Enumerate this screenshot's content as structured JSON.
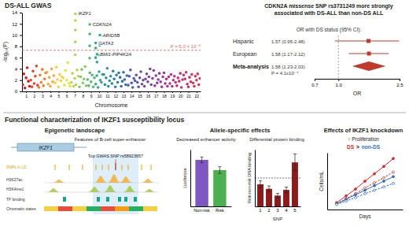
{
  "chart_data": [
    {
      "type": "scatter",
      "title": "DS-ALL GWAS",
      "x_label": "Chromosome",
      "y_label": "-log₁₀(P)",
      "xlim": [
        1,
        23
      ],
      "xticks": [
        {
          "value": 1.5,
          "label": "1"
        },
        {
          "value": 2.5,
          "label": "2"
        },
        {
          "value": 3.5,
          "label": "3"
        },
        {
          "value": 4.5,
          "label": "4"
        },
        {
          "value": 5.5,
          "label": "5"
        },
        {
          "value": 6.5,
          "label": "6"
        },
        {
          "value": 7.5,
          "label": "7"
        },
        {
          "value": 8.5,
          "label": "8"
        },
        {
          "value": 9.5,
          "label": "9"
        },
        {
          "value": 10.5,
          "label": "10"
        },
        {
          "value": 11.5,
          "label": "11"
        },
        {
          "value": 12.5,
          "label": "12"
        },
        {
          "value": 13.5,
          "label": "13"
        },
        {
          "value": 14.5,
          "label": "14"
        },
        {
          "value": 15.5,
          "label": "15"
        },
        {
          "value": 16.5,
          "label": "16"
        },
        {
          "value": 17.5,
          "label": "17"
        },
        {
          "value": 18.5,
          "label": "18"
        },
        {
          "value": 19.5,
          "label": "19"
        },
        {
          "value": 20.5,
          "label": "20"
        },
        {
          "value": 21.5,
          "label": "21"
        },
        {
          "value": 22.5,
          "label": "22"
        }
      ],
      "ylim": [
        0,
        14
      ],
      "yticks": [
        0,
        2,
        4,
        6,
        8,
        10,
        12,
        14
      ],
      "marker": "circle",
      "series": [
        {
          "color": "#d7191c",
          "x": [
            1.08,
            1.22,
            1.36,
            1.5,
            1.64,
            1.78,
            1.92
          ],
          "values": [
            1.2,
            3.1,
            0.6,
            2.4,
            4.2,
            1.8,
            0.9
          ]
        },
        {
          "color": "#e8452c",
          "x": [
            2.08,
            2.22,
            2.36,
            2.5,
            2.64,
            2.78,
            2.92
          ],
          "values": [
            2.0,
            0.8,
            3.6,
            1.4,
            2.7,
            4.5,
            1.1
          ]
        },
        {
          "color": "#f07c2e",
          "x": [
            3.08,
            3.22,
            3.36,
            3.5,
            3.64,
            3.78,
            3.92
          ],
          "values": [
            0.7,
            2.9,
            1.6,
            3.9,
            1.0,
            2.2,
            3.3
          ]
        },
        {
          "color": "#f4a93a",
          "x": [
            4.08,
            4.22,
            4.36,
            4.5,
            4.64,
            4.78,
            4.92
          ],
          "values": [
            3.4,
            1.3,
            2.5,
            0.9,
            4.0,
            1.7,
            2.8
          ]
        },
        {
          "color": "#f6cf43",
          "x": [
            5.08,
            5.22,
            5.36,
            5.5,
            5.64,
            5.78,
            5.92
          ],
          "values": [
            1.5,
            4.3,
            2.1,
            0.8,
            3.0,
            1.9,
            2.6
          ]
        },
        {
          "color": "#dfe04a",
          "x": [
            6.08,
            6.22,
            6.36,
            6.5,
            6.64,
            6.78,
            6.92
          ],
          "values": [
            2.4,
            1.1,
            3.7,
            2.0,
            5.1,
            1.4,
            0.9
          ]
        },
        {
          "color": "#b3d65a",
          "x": [
            7.08,
            7.22,
            7.36,
            7.5,
            7.64,
            7.78,
            7.92,
            7.55,
            7.56,
            7.57,
            7.58,
            7.58
          ],
          "values": [
            1.6,
            3.2,
            0.9,
            2.3,
            1.2,
            3.8,
            2.7,
            6.5,
            8.8,
            10.9,
            12.6,
            13.8
          ]
        },
        {
          "color": "#85c96a",
          "x": [
            8.08,
            8.22,
            8.36,
            8.5,
            8.64,
            8.78,
            8.92
          ],
          "values": [
            0.8,
            2.6,
            3.9,
            1.5,
            2.2,
            4.4,
            1.0
          ]
        },
        {
          "color": "#5ab97a",
          "x": [
            9.08,
            9.22,
            9.36,
            9.5,
            9.64,
            9.78,
            9.92,
            9.33,
            9.34,
            9.35,
            9.35
          ],
          "values": [
            2.1,
            1.0,
            3.3,
            1.7,
            2.9,
            0.8,
            2.4,
            5.9,
            8.1,
            10.2,
            11.9
          ]
        },
        {
          "color": "#3aa689",
          "x": [
            10.08,
            10.22,
            10.36,
            10.5,
            10.64,
            10.78,
            10.92,
            10.07,
            10.08,
            10.08,
            10.24,
            10.25,
            10.58,
            10.59,
            10.6
          ],
          "values": [
            1.3,
            2.8,
            0.7,
            3.5,
            2.0,
            1.6,
            3.0,
            6.0,
            7.7,
            8.6,
            5.2,
            6.6,
            6.4,
            8.2,
            10.0
          ]
        },
        {
          "color": "#2b9497",
          "x": [
            11.08,
            11.22,
            11.36,
            11.5,
            11.64,
            11.78,
            11.92
          ],
          "values": [
            3.0,
            1.2,
            2.4,
            4.1,
            0.9,
            1.9,
            2.7
          ]
        },
        {
          "color": "#2b81a3",
          "x": [
            12.08,
            12.22,
            12.36,
            12.5,
            12.64,
            12.78,
            12.92
          ],
          "values": [
            1.4,
            3.6,
            2.2,
            0.8,
            2.9,
            1.6,
            3.3
          ]
        },
        {
          "color": "#3a6eaa",
          "x": [
            13.08,
            13.22,
            13.36,
            13.5,
            13.64,
            13.78,
            13.92
          ],
          "values": [
            2.5,
            0.9,
            1.8,
            3.4,
            2.1,
            1.2,
            2.8
          ]
        },
        {
          "color": "#4f5ead",
          "x": [
            14.08,
            14.22,
            14.36,
            14.5,
            14.64,
            14.78,
            14.92
          ],
          "values": [
            1.1,
            2.7,
            3.8,
            1.5,
            0.7,
            2.3,
            1.9
          ]
        },
        {
          "color": "#6451ab",
          "x": [
            15.08,
            15.22,
            15.36,
            15.5,
            15.64,
            15.78,
            15.92
          ],
          "values": [
            2.9,
            1.6,
            0.8,
            2.4,
            3.5,
            1.3,
            2.0
          ]
        },
        {
          "color": "#7a47a6",
          "x": [
            16.08,
            16.22,
            16.36,
            16.5,
            16.64,
            16.78,
            16.92
          ],
          "values": [
            0.9,
            2.2,
            3.1,
            1.7,
            2.6,
            4.0,
            1.2
          ]
        },
        {
          "color": "#8e3f9e",
          "x": [
            17.08,
            17.22,
            17.36,
            17.5,
            17.64,
            17.78,
            17.92
          ],
          "values": [
            2.3,
            3.7,
            1.0,
            2.8,
            1.5,
            2.1,
            3.2
          ]
        },
        {
          "color": "#a13a93",
          "x": [
            18.08,
            18.22,
            18.36,
            18.5,
            18.64,
            18.78,
            18.92
          ],
          "values": [
            1.7,
            0.8,
            2.6,
            3.3,
            1.4,
            2.2,
            0.9
          ]
        },
        {
          "color": "#b23786",
          "x": [
            19.08,
            19.22,
            19.36,
            19.5,
            19.64,
            19.78,
            19.92
          ],
          "values": [
            2.6,
            1.4,
            3.0,
            0.9,
            2.0,
            2.7,
            1.6
          ]
        },
        {
          "color": "#c13577",
          "x": [
            20.08,
            20.22,
            20.36,
            20.5,
            20.64,
            20.78,
            20.92
          ],
          "values": [
            1.0,
            2.4,
            1.8,
            3.2,
            0.7,
            2.1,
            2.9
          ]
        },
        {
          "color": "#cd3466",
          "x": [
            21.08,
            21.22,
            21.36,
            21.5,
            21.64,
            21.78,
            21.92
          ],
          "values": [
            2.2,
            3.4,
            1.3,
            0.8,
            2.5,
            1.7,
            3.0
          ]
        },
        {
          "color": "#d73456",
          "x": [
            22.08,
            22.22,
            22.36,
            22.5,
            22.64,
            22.78,
            22.92
          ],
          "values": [
            1.5,
            0.9,
            2.7,
            2.0,
            3.1,
            1.2,
            2.3
          ]
        }
      ],
      "threshold": {
        "value": 7.3,
        "label": "P = 5.0 × 10⁻⁸",
        "color": "#e06666"
      },
      "annotations": [
        {
          "text": "IKZF1",
          "x": 7.58,
          "y": 13.8
        },
        {
          "text": "CDKN2A",
          "x": 9.35,
          "y": 11.9
        },
        {
          "text": "GATA3",
          "x": 10.08,
          "y": 8.6
        },
        {
          "text": "ARID5B",
          "x": 10.6,
          "y": 10.0
        },
        {
          "text": "BMI1-PIP4K2A",
          "x": 10.25,
          "y": 6.6
        }
      ]
    },
    {
      "type": "forest",
      "title": "CDKN2A missense SNP rs3731249 more strongly associated with DS-ALL than non-DS ALL",
      "subtitle": "OR with DS status (95% CI):",
      "categories": [
        "Hispanic",
        "European"
      ],
      "values": [
        1.57,
        1.58
      ],
      "lower": [
        0.95,
        1.17
      ],
      "upper": [
        2.48,
        2.12
      ],
      "value_labels": [
        "1.57 (0.95-2.48)",
        "1.58 (1.17-2.12)"
      ],
      "marker": "square",
      "color": "#c0392b",
      "pooled": {
        "label": "Meta-analysis",
        "value": 1.58,
        "lower": 1.23,
        "upper": 2.03,
        "value_label": "1.58 (1.23-2.03)",
        "p_value_label": "P = 4.1x10⁻⁴",
        "marker": "diamond"
      },
      "reference": 1,
      "x_label": "OR",
      "xlim": [
        0.7,
        2.5
      ],
      "xticks": [
        0.7,
        {
          "value": 1,
          "label": "1.0"
        },
        2.5
      ],
      "log": "x"
    },
    {
      "type": "bar",
      "title": "Decreased enhancer activity",
      "y_label": "Luciferase",
      "categories": [
        "Non-risk",
        "Risk"
      ],
      "values": [
        0.82,
        0.64
      ],
      "errors": [
        0.05,
        0.06
      ],
      "colors": [
        "#7e57c2",
        "#4caf50"
      ],
      "ylim": [
        0,
        1
      ],
      "tick_labels": "x"
    },
    {
      "type": "bar",
      "title": "Differential protein binding",
      "x_label": "SNP",
      "y_label": "Risk:non-risk DNA binding",
      "categories": [
        "1",
        "2",
        "3",
        "4",
        "5"
      ],
      "values": [
        0.78,
        0.62,
        0.38,
        0.58,
        1.55
      ],
      "errors": [
        0.12,
        0.1,
        0.08,
        0.1,
        0.3
      ],
      "color": "#8e1b1b",
      "reference": 1,
      "ylim": [
        0,
        2
      ],
      "tick_labels": "x"
    },
    {
      "type": "line",
      "title": "Effects of IKZF1 knockdown",
      "subtitle": "↑ Proliferation",
      "comparison": ">",
      "x_label": "Days",
      "y_label": "Cells/mL",
      "x": [
        1,
        2,
        3,
        4,
        5,
        6,
        7
      ],
      "xlim": [
        0,
        8
      ],
      "ylim": [
        0,
        10
      ],
      "tick_labels": false,
      "marker": "circle",
      "series": [
        {
          "name": "DS",
          "color": "#d62728",
          "line_style": "solid",
          "values": [
            1.2,
            2.4,
            3.6,
            5.0,
            6.3,
            7.6,
            9.0
          ]
        },
        {
          "color": "#d62728",
          "line_style": "dashed",
          "values": [
            1.0,
            1.9,
            2.8,
            3.8,
            4.7,
            5.6,
            6.6
          ]
        },
        {
          "name": "non-DS",
          "color": "#2f6db5",
          "line_style": "solid",
          "values": [
            1.0,
            1.8,
            2.6,
            3.4,
            4.2,
            5.0,
            5.8
          ]
        },
        {
          "color": "#2f6db5",
          "line_style": "dashed",
          "values": [
            0.9,
            1.5,
            2.1,
            2.8,
            3.4,
            4.0,
            4.6
          ]
        }
      ]
    }
  ],
  "section_title": "Functional characterization of IKZF1 susceptibility locus",
  "allele_title": "Allele-specific effects",
  "epigenetic": {
    "title": "Epigenetic landscape",
    "gene": "IKZF1",
    "feature": "Features of B-cell super-enhancer",
    "top_snp": "Top GWAS SNP rs58923657",
    "tracks": [
      "SNPs in LD",
      "H3K27ac",
      "H3K4me1",
      "TF binding",
      "Chromatin states"
    ]
  }
}
